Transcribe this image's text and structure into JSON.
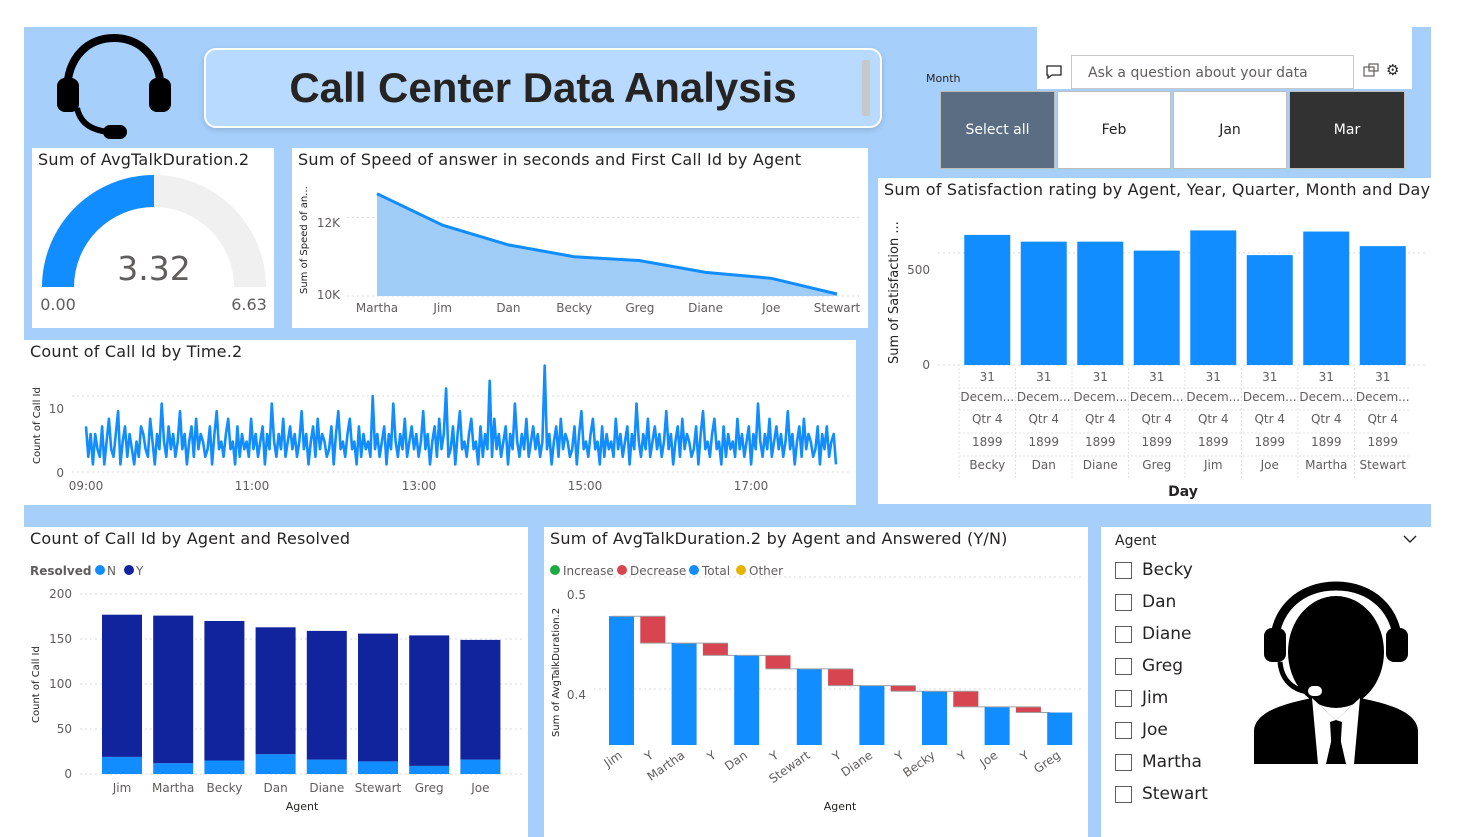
{
  "header": {
    "title": "Call Center Data Analysis",
    "headset_icon": "headset-icon"
  },
  "qa": {
    "placeholder": "Ask a question about your data"
  },
  "month_slicer": {
    "label": "Month",
    "options": [
      "Select all",
      "Feb",
      "Jan",
      "Mar"
    ],
    "selected": "Mar"
  },
  "gauge": {
    "title": "Sum of AvgTalkDuration.2",
    "value": "3.32",
    "min": "0.00",
    "max": "6.63",
    "fraction": 0.5
  },
  "speed_chart": {
    "title": "Sum of Speed of answer in seconds and First Call Id by Agent",
    "ylabel": "Sum of Speed of an...",
    "yticks": [
      "12K",
      "10K"
    ]
  },
  "calls_time_chart": {
    "title": "Count of Call Id by Time.2",
    "ylabel": "Count of Call Id",
    "yticks": [
      "10",
      "0"
    ],
    "xticks": [
      "09:00",
      "11:00",
      "13:00",
      "15:00",
      "17:00"
    ]
  },
  "satisfaction_chart": {
    "title": "Sum of Satisfaction rating by Agent, Year, Quarter, Month and Day",
    "ylabel": "Sum of Satisfaction ...",
    "xlabel": "Day",
    "yticks": [
      "500",
      "0"
    ],
    "day": "31",
    "month": "Decem...",
    "quarter": "Qtr 4",
    "year": "1899"
  },
  "resolved_chart": {
    "title": "Count of Call Id by Agent and Resolved",
    "legend_title": "Resolved",
    "ylabel": "Count of Call Id",
    "xlabel": "Agent",
    "yticks": [
      "200",
      "150",
      "100",
      "50",
      "0"
    ]
  },
  "waterfall_chart": {
    "title": "Sum of AvgTalkDuration.2 by Agent and Answered (Y/N)",
    "legend": [
      "Increase",
      "Decrease",
      "Total",
      "Other"
    ],
    "ylabel": "Sum of AvgTalkDuration.2",
    "xlabel": "Agent",
    "yticks": [
      "0.5",
      "0.4"
    ]
  },
  "agent_slicer": {
    "label": "Agent",
    "items": [
      "Becky",
      "Dan",
      "Diane",
      "Greg",
      "Jim",
      "Joe",
      "Martha",
      "Stewart"
    ]
  },
  "colors": {
    "accent": "#118dff",
    "dark_navy": "#12239e",
    "increase": "#1aab40",
    "decrease": "#d64550",
    "other": "#e6b400",
    "panel_bg": "#a6cffb"
  },
  "chart_data": [
    {
      "type": "area",
      "title": "Sum of Speed of answer in seconds and First Call Id by Agent",
      "ylabel": "Sum of Speed of an...",
      "categories": [
        "Martha",
        "Jim",
        "Dan",
        "Becky",
        "Greg",
        "Diane",
        "Joe",
        "Stewart"
      ],
      "values": [
        12600,
        11800,
        11300,
        11000,
        10900,
        10600,
        10450,
        10050
      ],
      "ylim": [
        10000,
        13000
      ]
    },
    {
      "type": "line",
      "title": "Count of Call Id by Time.2",
      "ylabel": "Count of Call Id",
      "xlim": [
        "09:00",
        "18:00"
      ],
      "ylim": [
        0,
        15
      ],
      "values": [
        6,
        2,
        5,
        1,
        5,
        3,
        2,
        6,
        1,
        4,
        7,
        3,
        2,
        5,
        8,
        1,
        4,
        6,
        2,
        5,
        3,
        1,
        4,
        2,
        6,
        5,
        3,
        2,
        7,
        4,
        1,
        5,
        3,
        9,
        4,
        2,
        6,
        3,
        5,
        2,
        4,
        8,
        3,
        5,
        1,
        4,
        6,
        2,
        7,
        3,
        5,
        4,
        2,
        3,
        6,
        1,
        5,
        8,
        3,
        4,
        2,
        5,
        7,
        3,
        4,
        1,
        6,
        2,
        5,
        3,
        4,
        2,
        7,
        3,
        5,
        2,
        4,
        6,
        1,
        5,
        3,
        9,
        4,
        2,
        5,
        3,
        7,
        2,
        4,
        6,
        3,
        5,
        2,
        4,
        8,
        3,
        5,
        1,
        4,
        6,
        2,
        7,
        3,
        5,
        4,
        2,
        3,
        6,
        1,
        5,
        8,
        3,
        4,
        2,
        5,
        7,
        3,
        4,
        1,
        6,
        2,
        5,
        3,
        4,
        2,
        10,
        3,
        5,
        2,
        4,
        6,
        1,
        5,
        3,
        9,
        4,
        2,
        5,
        3,
        7,
        2,
        4,
        6,
        3,
        5,
        2,
        4,
        8,
        3,
        5,
        1,
        4,
        6,
        2,
        7,
        3,
        5,
        11,
        2,
        3,
        6,
        1,
        5,
        8,
        3,
        4,
        2,
        5,
        7,
        3,
        4,
        1,
        6,
        2,
        5,
        3,
        12,
        2,
        7,
        3,
        5,
        2,
        4,
        6,
        1,
        5,
        3,
        9,
        4,
        2,
        5,
        3,
        7,
        2,
        4,
        6,
        3,
        5,
        2,
        4,
        14,
        3,
        5,
        1,
        4,
        6,
        2,
        7,
        3,
        5,
        4,
        2,
        3,
        6,
        1,
        5,
        8,
        3,
        4,
        2,
        5,
        7,
        3,
        4,
        1,
        6,
        2,
        5,
        3,
        4,
        2,
        7,
        3,
        5,
        2,
        4,
        6,
        1,
        5,
        3,
        9,
        4,
        2,
        5,
        3,
        7,
        2,
        4,
        6,
        3,
        5,
        2,
        4,
        8,
        3,
        5,
        1,
        4,
        6,
        2,
        7,
        3,
        5,
        4,
        2,
        3,
        6,
        1,
        5,
        8,
        3,
        4,
        2,
        5,
        7,
        3,
        4,
        1,
        6,
        2,
        5,
        3,
        4,
        2,
        7,
        3,
        5,
        2,
        4,
        6,
        1,
        5,
        3,
        9,
        4,
        2,
        5,
        3,
        7,
        2,
        4,
        6,
        3,
        5,
        2,
        4,
        8,
        3,
        5,
        1,
        4,
        6,
        2,
        7,
        3,
        5,
        4,
        2,
        3,
        6,
        1,
        5,
        3,
        6,
        2,
        4,
        5,
        1
      ]
    },
    {
      "type": "bar",
      "title": "Sum of Satisfaction rating by Agent, Year, Quarter, Month and Day",
      "ylabel": "Sum of Satisfaction ...",
      "xlabel": "Day",
      "categories": [
        "Becky",
        "Dan",
        "Diane",
        "Greg",
        "Jim",
        "Joe",
        "Martha",
        "Stewart"
      ],
      "values": [
        580,
        550,
        550,
        510,
        600,
        490,
        595,
        530
      ],
      "ylim": [
        0,
        700
      ]
    },
    {
      "type": "bar",
      "title": "Count of Call Id by Agent and Resolved",
      "ylabel": "Count of Call Id",
      "xlabel": "Agent",
      "categories": [
        "Jim",
        "Martha",
        "Becky",
        "Dan",
        "Diane",
        "Stewart",
        "Greg",
        "Joe"
      ],
      "series": [
        {
          "name": "N",
          "values": [
            19,
            12,
            15,
            22,
            16,
            14,
            9,
            16
          ]
        },
        {
          "name": "Y",
          "values": [
            158,
            164,
            155,
            141,
            143,
            142,
            145,
            133
          ]
        }
      ],
      "ylim": [
        0,
        200
      ]
    },
    {
      "type": "bar",
      "title": "Sum of AvgTalkDuration.2 by Agent and Answered (Y/N)",
      "ylabel": "Sum of AvgTalkDuration.2",
      "xlabel": "Agent",
      "categories": [
        "Jim",
        "Y",
        "Martha",
        "Y",
        "Dan",
        "Y",
        "Stewart",
        "Y",
        "Diane",
        "Y",
        "Becky",
        "Y",
        "Joe",
        "Y",
        "Greg"
      ],
      "series": [
        {
          "name": "Total",
          "values": [
            0.465,
            null,
            0.441,
            null,
            0.43,
            null,
            0.418,
            null,
            0.403,
            null,
            0.398,
            null,
            0.384,
            null,
            0.379
          ]
        },
        {
          "name": "Decrease",
          "values": [
            null,
            -0.024,
            null,
            -0.011,
            null,
            -0.012,
            null,
            -0.015,
            null,
            -0.005,
            null,
            -0.014,
            null,
            -0.005,
            null
          ]
        }
      ],
      "ylim": [
        0.35,
        0.5
      ]
    }
  ]
}
